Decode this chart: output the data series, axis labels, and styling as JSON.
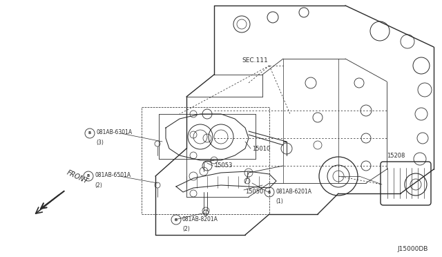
{
  "bg_color": "#ffffff",
  "line_color": "#2a2a2a",
  "diagram_code": "J15000DB",
  "sec_label": "SEC.111",
  "front_label": "FRONT",
  "fig_w": 6.4,
  "fig_h": 3.72,
  "dpi": 100
}
